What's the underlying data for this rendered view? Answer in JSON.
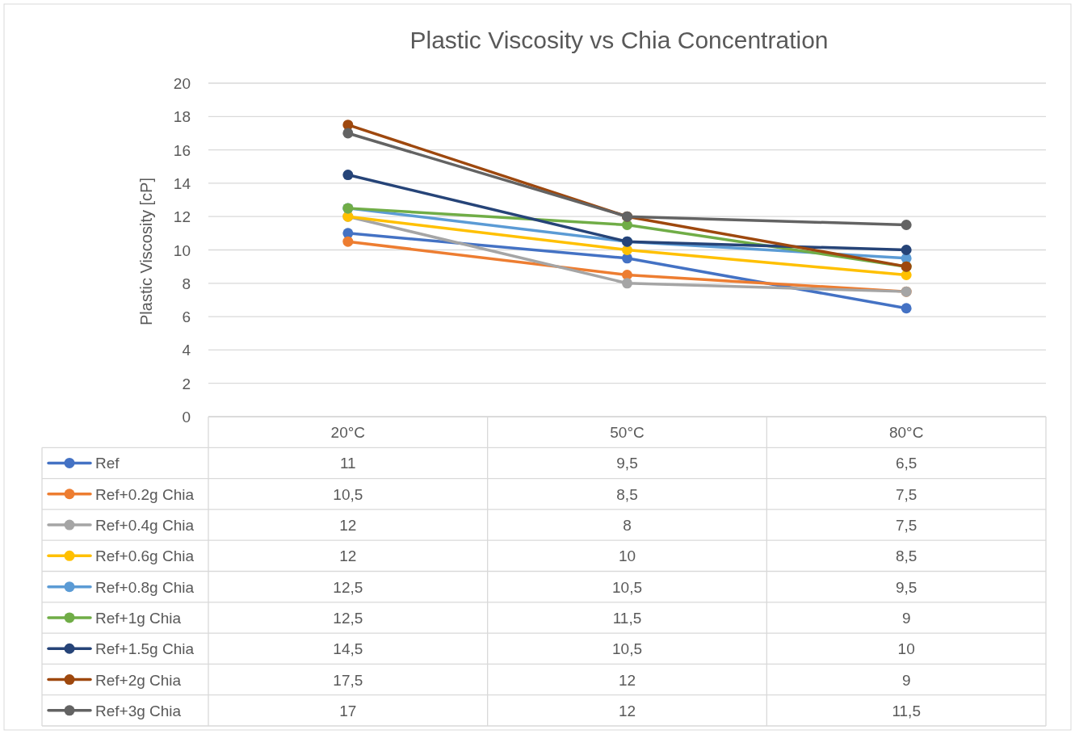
{
  "chart_data": {
    "type": "line",
    "title": "Plastic Viscosity vs Chia Concentration",
    "ylabel": "Plastic Viscosity [cP]",
    "categories": [
      "20°C",
      "50°C",
      "80°C"
    ],
    "ylim": [
      0,
      20
    ],
    "yticks": [
      0,
      2,
      4,
      6,
      8,
      10,
      12,
      14,
      16,
      18,
      20
    ],
    "grid": "y",
    "legend": "bottom",
    "marker": "circle",
    "series": [
      {
        "name": "Ref",
        "color": "#4472c4",
        "values": [
          11,
          9.5,
          6.5
        ],
        "value_labels": [
          "11",
          "9,5",
          "6,5"
        ]
      },
      {
        "name": "Ref+0.2g Chia",
        "color": "#ed7d31",
        "values": [
          10.5,
          8.5,
          7.5
        ],
        "value_labels": [
          "10,5",
          "8,5",
          "7,5"
        ]
      },
      {
        "name": "Ref+0.4g Chia",
        "color": "#a5a5a5",
        "values": [
          12,
          8,
          7.5
        ],
        "value_labels": [
          "12",
          "8",
          "7,5"
        ]
      },
      {
        "name": "Ref+0.6g Chia",
        "color": "#ffc000",
        "values": [
          12,
          10,
          8.5
        ],
        "value_labels": [
          "12",
          "10",
          "8,5"
        ]
      },
      {
        "name": "Ref+0.8g Chia",
        "color": "#5b9bd5",
        "values": [
          12.5,
          10.5,
          9.5
        ],
        "value_labels": [
          "12,5",
          "10,5",
          "9,5"
        ]
      },
      {
        "name": "Ref+1g Chia",
        "color": "#70ad47",
        "values": [
          12.5,
          11.5,
          9
        ],
        "value_labels": [
          "12,5",
          "11,5",
          "9"
        ]
      },
      {
        "name": "Ref+1.5g Chia",
        "color": "#264478",
        "values": [
          14.5,
          10.5,
          10
        ],
        "value_labels": [
          "14,5",
          "10,5",
          "10"
        ]
      },
      {
        "name": "Ref+2g Chia",
        "color": "#9e480e",
        "values": [
          17.5,
          12,
          9
        ],
        "value_labels": [
          "17,5",
          "12",
          "9"
        ]
      },
      {
        "name": "Ref+3g Chia",
        "color": "#636363",
        "values": [
          17,
          12,
          11.5
        ],
        "value_labels": [
          "17",
          "12",
          "11,5"
        ]
      }
    ]
  }
}
